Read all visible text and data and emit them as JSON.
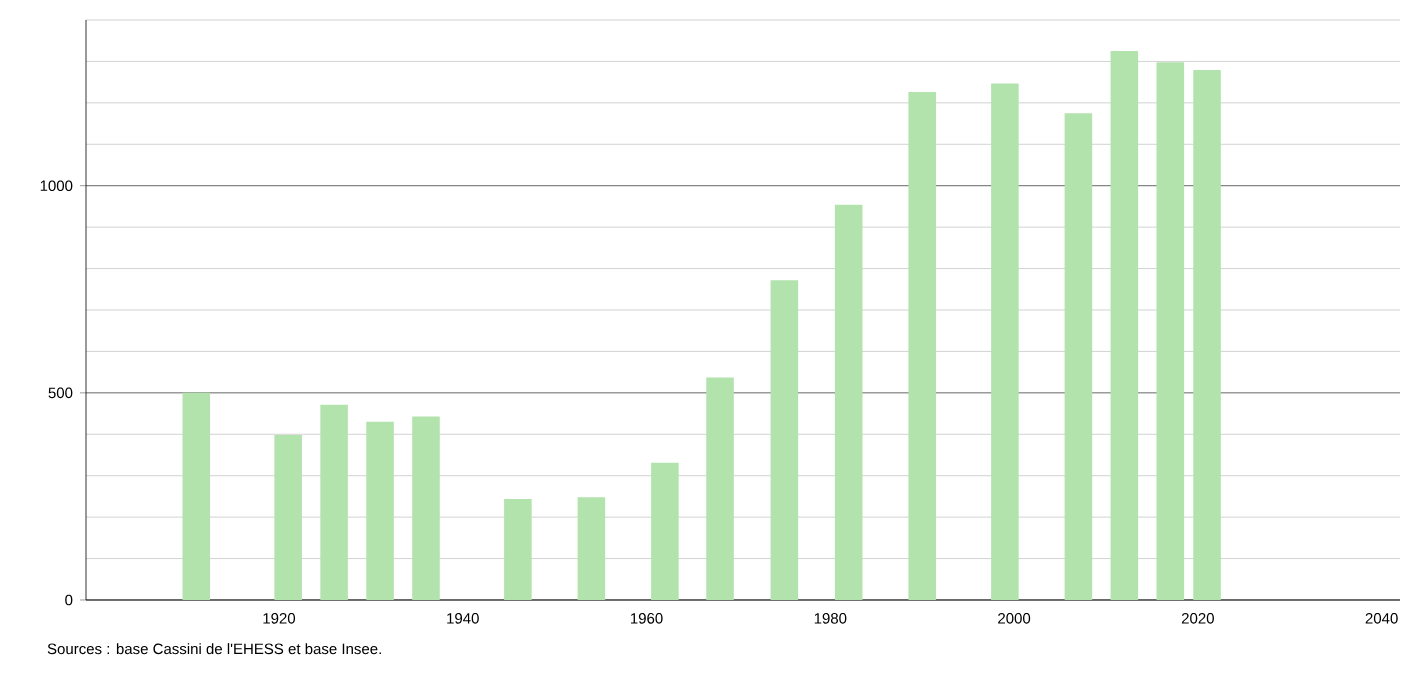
{
  "chart_data": {
    "type": "bar",
    "x": [
      1911,
      1921,
      1926,
      1931,
      1936,
      1946,
      1954,
      1962,
      1968,
      1975,
      1982,
      1990,
      1999,
      2007,
      2012,
      2017,
      2021
    ],
    "values": [
      500,
      398,
      471,
      430,
      443,
      244,
      248,
      331,
      537,
      772,
      954,
      1226,
      1247,
      1175,
      1325,
      1298,
      1279
    ],
    "color": "#b2e3ad",
    "xlim": [
      1899,
      2042
    ],
    "ylim": [
      0,
      1400
    ],
    "xticks": [
      1920,
      1940,
      1960,
      1980,
      2000,
      2020,
      2040
    ],
    "yticks": [
      0,
      {
        "value": 100,
        "label": null
      },
      {
        "value": 200,
        "label": null
      },
      {
        "value": 300,
        "label": null
      },
      {
        "value": 400,
        "label": null
      },
      500,
      {
        "value": 600,
        "label": null
      },
      {
        "value": 700,
        "label": null
      },
      {
        "value": 800,
        "label": null
      },
      {
        "value": 900,
        "label": null
      },
      1000,
      {
        "value": 1100,
        "label": null
      },
      {
        "value": 1200,
        "label": null
      },
      {
        "value": 1300,
        "label": null
      },
      {
        "value": 1400,
        "label": null
      }
    ],
    "grid": "y",
    "annotations": [
      "Sources : base Cassini de l'EHESS et base Insee."
    ]
  }
}
